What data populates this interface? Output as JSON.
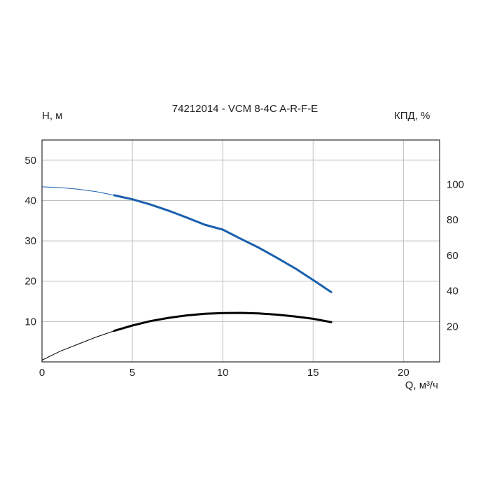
{
  "chart_data": {
    "type": "line",
    "title": "74212014 - VCM 8-4C A-R-F-E",
    "xlabel": "Q, м³/ч",
    "ylabel": "H, м",
    "y2label": "КПД, %",
    "xlim": [
      0,
      22
    ],
    "ylim": [
      0,
      55
    ],
    "y2lim": [
      0,
      125
    ],
    "x_ticks": [
      0,
      5,
      10,
      15,
      20
    ],
    "y_ticks": [
      10,
      20,
      30,
      40,
      50
    ],
    "y2_ticks": [
      20,
      40,
      60,
      80,
      100
    ],
    "grid": true,
    "colors": {
      "head": "#1a5fad",
      "efficiency": "#000000",
      "grid": "#bfbfbf",
      "axes": "#000000"
    },
    "series": [
      {
        "axis": "left",
        "operating_range": [
          4,
          16
        ],
        "x": [
          0,
          1,
          2,
          3,
          4,
          5,
          6,
          7,
          8,
          9,
          10,
          11,
          12,
          13,
          14,
          15,
          16
        ],
        "y": [
          43.4,
          43.2,
          42.8,
          42.2,
          41.3,
          40.3,
          39.0,
          37.5,
          35.8,
          34.0,
          32.8,
          30.5,
          28.3,
          25.8,
          23.2,
          20.3,
          17.3
        ]
      },
      {
        "axis": "right",
        "operating_range": [
          4,
          16
        ],
        "x": [
          0,
          1,
          2,
          3,
          4,
          5,
          6,
          7,
          8,
          9,
          10,
          11,
          12,
          13,
          14,
          15,
          16
        ],
        "y": [
          1,
          6,
          10,
          14,
          17.5,
          20.5,
          23,
          24.8,
          26.2,
          27.1,
          27.5,
          27.6,
          27.3,
          26.6,
          25.6,
          24.3,
          22.4
        ]
      }
    ]
  }
}
